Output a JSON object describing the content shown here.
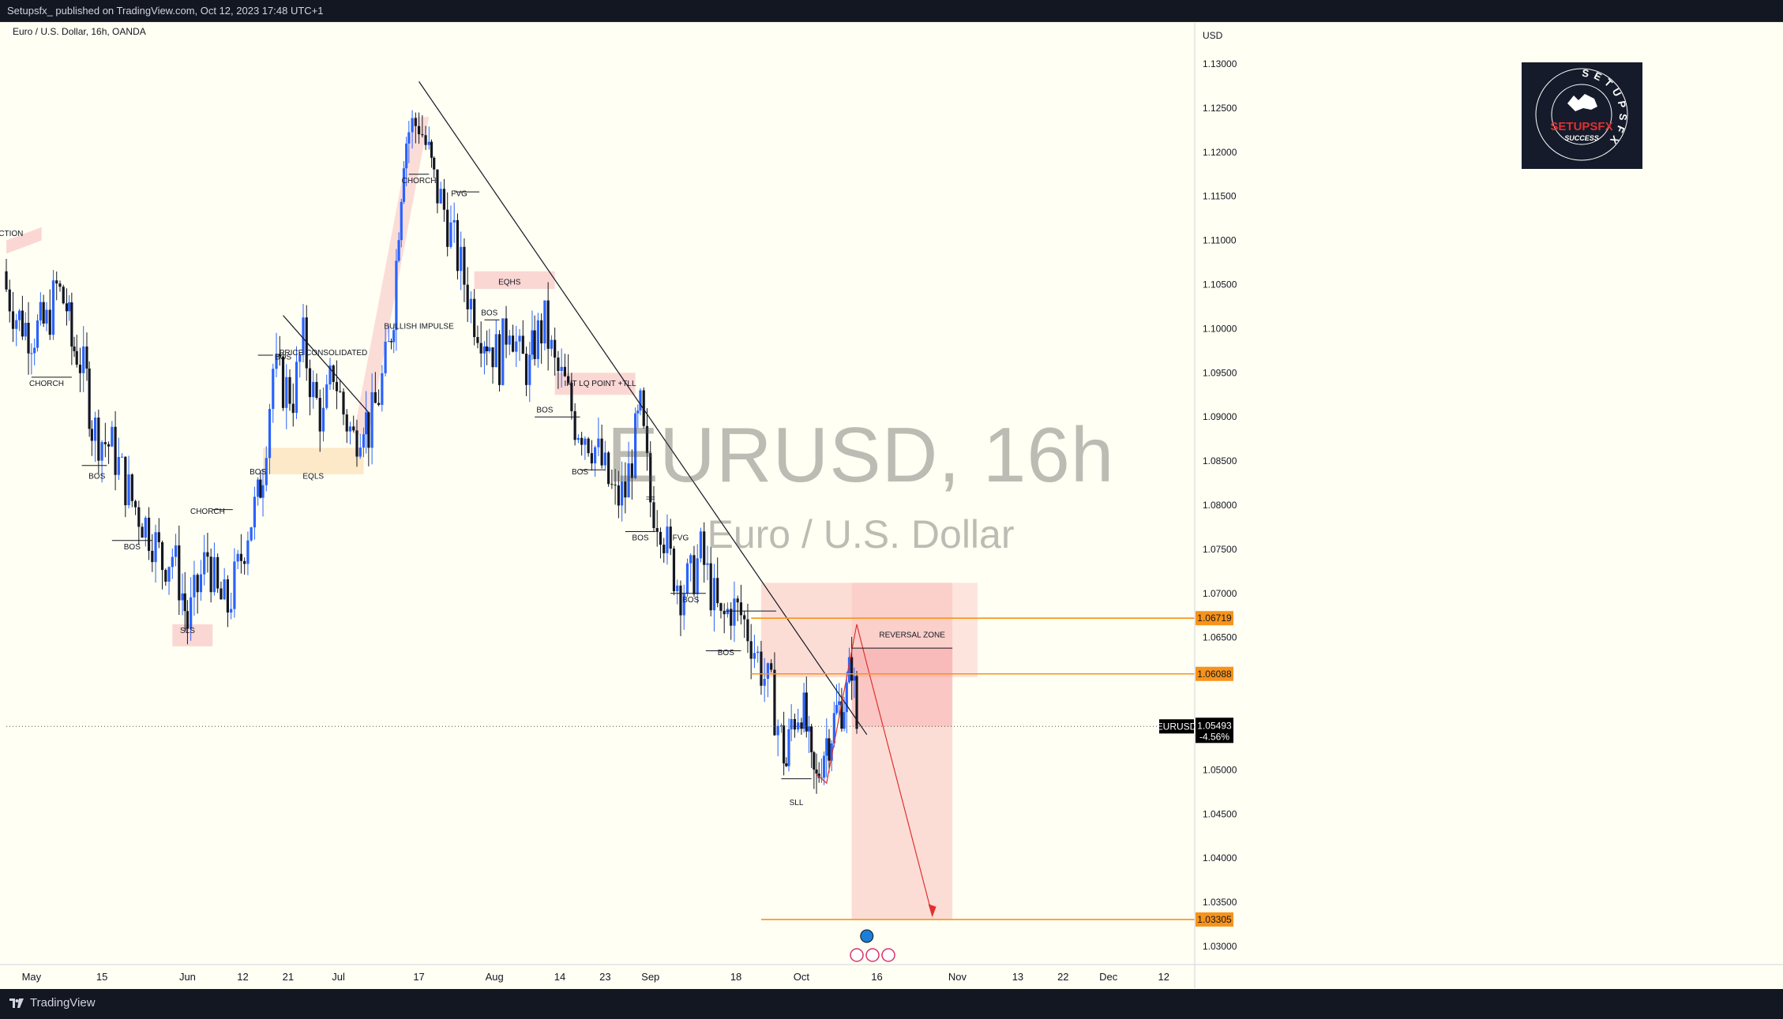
{
  "header": {
    "published_line": "Setupsfx_ published on TradingView.com, Oct 12, 2023 17:48 UTC+1",
    "symbol_description": "Euro / U.S. Dollar, 16h, OANDA"
  },
  "watermark": {
    "symbol_interval": "EURUSD, 16h",
    "description": "Euro / U.S. Dollar"
  },
  "logo_badge": {
    "brand": "SETUPSFX",
    "tagline": "SUCCESS",
    "ring_text": "SETUPSFX"
  },
  "footer": {
    "brand": "TradingView"
  },
  "colors": {
    "background": "#fffff3",
    "candle_up": "#2962ff",
    "candle_down": "#131722",
    "level_line": "#f7931a",
    "zone_fill": "#f8b4b4",
    "impulse_fill": "#f9c6c6",
    "eqls_fill": "#fde6c3",
    "price_tag": "#000000"
  },
  "chart_data": {
    "type": "candlestick",
    "symbol": "EURUSD",
    "interval": "16h",
    "currency": "USD",
    "y_range": [
      1.0275,
      1.1385
    ],
    "y_ticks": [
      1.13,
      1.125,
      1.12,
      1.115,
      1.11,
      1.105,
      1.1,
      1.095,
      1.09,
      1.085,
      1.08,
      1.075,
      1.07,
      1.065,
      1.06,
      1.055,
      1.05,
      1.045,
      1.04,
      1.035,
      1.03
    ],
    "x_range": [
      "2023-04-26",
      "2023-12-18"
    ],
    "x_ticks": [
      {
        "date": "2023-05-01",
        "label": "May"
      },
      {
        "date": "2023-05-15",
        "label": "15"
      },
      {
        "date": "2023-06-01",
        "label": "Jun"
      },
      {
        "date": "2023-06-12",
        "label": "12"
      },
      {
        "date": "2023-06-21",
        "label": "21"
      },
      {
        "date": "2023-07-01",
        "label": "Jul"
      },
      {
        "date": "2023-07-17",
        "label": "17"
      },
      {
        "date": "2023-08-01",
        "label": "Aug"
      },
      {
        "date": "2023-08-14",
        "label": "14"
      },
      {
        "date": "2023-08-23",
        "label": "23"
      },
      {
        "date": "2023-09-01",
        "label": "Sep"
      },
      {
        "date": "2023-09-18",
        "label": "18"
      },
      {
        "date": "2023-10-01",
        "label": "Oct"
      },
      {
        "date": "2023-10-16",
        "label": "16"
      },
      {
        "date": "2023-11-01",
        "label": "Nov"
      },
      {
        "date": "2023-11-13",
        "label": "13"
      },
      {
        "date": "2023-11-22",
        "label": "22"
      },
      {
        "date": "2023-12-01",
        "label": "Dec"
      },
      {
        "date": "2023-12-12",
        "label": "12"
      }
    ],
    "close_path": [
      [
        "2023-04-26",
        1.1045
      ],
      [
        "2023-04-28",
        1.1015
      ],
      [
        "2023-05-01",
        1.0995
      ],
      [
        "2023-05-04",
        1.1005
      ],
      [
        "2023-05-06",
        1.1045
      ],
      [
        "2023-05-08",
        1.1025
      ],
      [
        "2023-05-09",
        1.098
      ],
      [
        "2023-05-10",
        1.0975
      ],
      [
        "2023-05-12",
        1.094
      ],
      [
        "2023-05-13",
        1.089
      ],
      [
        "2023-05-15",
        1.0875
      ],
      [
        "2023-05-17",
        1.0865
      ],
      [
        "2023-05-19",
        1.0835
      ],
      [
        "2023-05-21",
        1.0805
      ],
      [
        "2023-05-23",
        1.0785
      ],
      [
        "2023-05-25",
        1.0765
      ],
      [
        "2023-05-27",
        1.0735
      ],
      [
        "2023-05-29",
        1.0745
      ],
      [
        "2023-05-31",
        1.07
      ],
      [
        "2023-06-01",
        1.0665
      ],
      [
        "2023-06-03",
        1.0705
      ],
      [
        "2023-06-05",
        1.0745
      ],
      [
        "2023-06-07",
        1.0695
      ],
      [
        "2023-06-09",
        1.0685
      ],
      [
        "2023-06-11",
        1.0725
      ],
      [
        "2023-06-13",
        1.0775
      ],
      [
        "2023-06-15",
        1.0805
      ],
      [
        "2023-06-16",
        1.0845
      ],
      [
        "2023-06-18",
        1.0955
      ],
      [
        "2023-06-20",
        1.0935
      ],
      [
        "2023-06-22",
        1.0925
      ],
      [
        "2023-06-24",
        1.0985
      ],
      [
        "2023-06-26",
        1.0925
      ],
      [
        "2023-06-28",
        1.0895
      ],
      [
        "2023-06-30",
        1.0955
      ],
      [
        "2023-07-02",
        1.0905
      ],
      [
        "2023-07-04",
        1.0875
      ],
      [
        "2023-07-06",
        1.0905
      ],
      [
        "2023-07-07",
        1.0885
      ],
      [
        "2023-07-09",
        1.0925
      ],
      [
        "2023-07-11",
        1.0975
      ],
      [
        "2023-07-12",
        1.1025
      ],
      [
        "2023-07-13",
        1.1125
      ],
      [
        "2023-07-14",
        1.1205
      ],
      [
        "2023-07-15",
        1.1225
      ],
      [
        "2023-07-17",
        1.1235
      ],
      [
        "2023-07-19",
        1.1195
      ],
      [
        "2023-07-20",
        1.1165
      ],
      [
        "2023-07-22",
        1.1135
      ],
      [
        "2023-07-24",
        1.1095
      ],
      [
        "2023-07-26",
        1.1055
      ],
      [
        "2023-07-28",
        1.1015
      ],
      [
        "2023-07-30",
        1.0995
      ],
      [
        "2023-07-31",
        1.0985
      ],
      [
        "2023-08-02",
        1.0965
      ],
      [
        "2023-08-04",
        1.1015
      ],
      [
        "2023-08-06",
        1.0965
      ],
      [
        "2023-08-08",
        1.0955
      ],
      [
        "2023-08-09",
        1.0985
      ],
      [
        "2023-08-11",
        1.1005
      ],
      [
        "2023-08-13",
        1.0955
      ],
      [
        "2023-08-15",
        1.0935
      ],
      [
        "2023-08-17",
        1.0895
      ],
      [
        "2023-08-19",
        1.0885
      ],
      [
        "2023-08-21",
        1.0865
      ],
      [
        "2023-08-23",
        1.0835
      ],
      [
        "2023-08-25",
        1.0805
      ],
      [
        "2023-08-27",
        1.0815
      ],
      [
        "2023-08-29",
        1.0875
      ],
      [
        "2023-08-30",
        1.0905
      ],
      [
        "2023-09-01",
        1.0805
      ],
      [
        "2023-09-03",
        1.0785
      ],
      [
        "2023-09-05",
        1.0735
      ],
      [
        "2023-09-07",
        1.0705
      ],
      [
        "2023-09-09",
        1.0715
      ],
      [
        "2023-09-11",
        1.0745
      ],
      [
        "2023-09-13",
        1.0705
      ],
      [
        "2023-09-15",
        1.0665
      ],
      [
        "2023-09-17",
        1.0685
      ],
      [
        "2023-09-19",
        1.0675
      ],
      [
        "2023-09-21",
        1.065
      ],
      [
        "2023-09-23",
        1.0615
      ],
      [
        "2023-09-25",
        1.0585
      ],
      [
        "2023-09-27",
        1.0535
      ],
      [
        "2023-09-28",
        1.0505
      ],
      [
        "2023-09-29",
        1.0555
      ],
      [
        "2023-10-01",
        1.0575
      ],
      [
        "2023-10-02",
        1.0545
      ],
      [
        "2023-10-03",
        1.0495
      ],
      [
        "2023-10-04",
        1.0485
      ],
      [
        "2023-10-05",
        1.0515
      ],
      [
        "2023-10-06",
        1.0535
      ],
      [
        "2023-10-07",
        1.0545
      ],
      [
        "2023-10-08",
        1.0565
      ],
      [
        "2023-10-09",
        1.0575
      ],
      [
        "2023-10-10",
        1.0585
      ],
      [
        "2023-10-11",
        1.0625
      ],
      [
        "2023-10-12",
        1.0549
      ]
    ],
    "last_price": {
      "symbol": "EURUSD",
      "value": "1.05493",
      "change": "-4.56%",
      "y": 1.05493
    },
    "price_levels": [
      {
        "label": "1.06719",
        "y": 1.06719
      },
      {
        "label": "1.06088",
        "y": 1.06088
      },
      {
        "label": "1.03305",
        "y": 1.03305
      }
    ],
    "annotations": [
      {
        "text": "JECTION",
        "date": "2023-04-26",
        "y": 1.1105
      },
      {
        "text": "CHORCH",
        "date": "2023-05-04",
        "y": 1.0935
      },
      {
        "text": "BOS",
        "date": "2023-05-14",
        "y": 1.083
      },
      {
        "text": "BOS",
        "date": "2023-05-21",
        "y": 1.075
      },
      {
        "text": "SLS",
        "date": "2023-06-01",
        "y": 1.0655
      },
      {
        "text": "CHORCH",
        "date": "2023-06-05",
        "y": 1.079
      },
      {
        "text": "BOS",
        "date": "2023-06-15",
        "y": 1.0835
      },
      {
        "text": "BOS",
        "date": "2023-06-20",
        "y": 1.0965
      },
      {
        "text": "PRICE CONSOLIDATED",
        "date": "2023-06-28",
        "y": 1.097
      },
      {
        "text": "EQLS",
        "date": "2023-06-26",
        "y": 1.083
      },
      {
        "text": "BULLISH IMPULSE",
        "date": "2023-07-17",
        "y": 1.1
      },
      {
        "text": "CHORCH",
        "date": "2023-07-17",
        "y": 1.1165
      },
      {
        "text": "FVG",
        "date": "2023-07-25",
        "y": 1.115
      },
      {
        "text": "EQHS",
        "date": "2023-08-04",
        "y": 1.105
      },
      {
        "text": "BOS",
        "date": "2023-07-31",
        "y": 1.1015
      },
      {
        "text": "INT LQ POINT +TLL",
        "date": "2023-08-22",
        "y": 1.0935
      },
      {
        "text": "BOS",
        "date": "2023-08-11",
        "y": 1.0905
      },
      {
        "text": "BOS",
        "date": "2023-08-18",
        "y": 1.0835
      },
      {
        "text": "==",
        "date": "2023-09-01",
        "y": 1.0805
      },
      {
        "text": "BOS",
        "date": "2023-08-30",
        "y": 1.076
      },
      {
        "text": "FVG",
        "date": "2023-09-07",
        "y": 1.076
      },
      {
        "text": "BOS",
        "date": "2023-09-09",
        "y": 1.069
      },
      {
        "text": "BOS",
        "date": "2023-09-16",
        "y": 1.063
      },
      {
        "text": "REVERSAL ZONE",
        "date": "2023-10-23",
        "y": 1.065
      },
      {
        "text": "SLL",
        "date": "2023-09-30",
        "y": 1.046
      }
    ]
  }
}
